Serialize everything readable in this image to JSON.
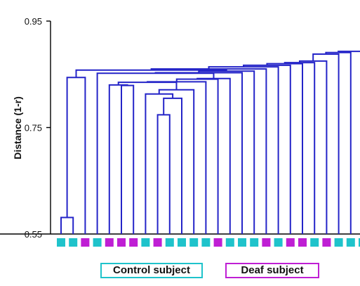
{
  "chart_data": {
    "type": "dendrogram",
    "title": "",
    "ylabel": "Distance (1-r)",
    "xlabel": "",
    "ylim": [
      0.55,
      0.95
    ],
    "yticks": [
      0.55,
      0.75,
      0.95
    ],
    "ytick_labels": [
      "0.55",
      "0.75",
      "0.95"
    ],
    "linkage_color": "#2424c8",
    "leaf_groups": [
      "control",
      "control",
      "deaf",
      "control",
      "deaf",
      "deaf",
      "deaf",
      "control",
      "deaf",
      "control",
      "control",
      "control",
      "control",
      "deaf",
      "control",
      "control",
      "control",
      "deaf",
      "control",
      "deaf",
      "deaf",
      "control",
      "deaf",
      "control",
      "control",
      "control"
    ],
    "merges": [
      {
        "left": "L0",
        "right": "L1",
        "height": 0.581
      },
      {
        "left": "L8",
        "right": "L9",
        "height": 0.774
      },
      {
        "left": "M1",
        "right": "L10",
        "height": 0.805
      },
      {
        "left": "L7",
        "right": "M2",
        "height": 0.813
      },
      {
        "left": "M3",
        "right": "L11",
        "height": 0.821
      },
      {
        "left": "L5",
        "right": "L6",
        "height": 0.829
      },
      {
        "left": "L4",
        "right": "M5",
        "height": 0.83
      },
      {
        "left": "M6",
        "right": "M4",
        "height": 0.835
      },
      {
        "left": "M7",
        "right": "L12",
        "height": 0.836
      },
      {
        "left": "M8",
        "right": "L13",
        "height": 0.841
      },
      {
        "left": "M9",
        "right": "L14",
        "height": 0.842
      },
      {
        "left": "M0",
        "right": "L2",
        "height": 0.844
      },
      {
        "left": "L3",
        "right": "M10",
        "height": 0.852
      },
      {
        "left": "M12",
        "right": "L15",
        "height": 0.853
      },
      {
        "left": "M13",
        "right": "L16",
        "height": 0.856
      },
      {
        "left": "M11",
        "right": "M14",
        "height": 0.858
      },
      {
        "left": "M15",
        "right": "L17",
        "height": 0.86
      },
      {
        "left": "M16",
        "right": "L18",
        "height": 0.864
      },
      {
        "left": "M17",
        "right": "L19",
        "height": 0.867
      },
      {
        "left": "M18",
        "right": "L20",
        "height": 0.87
      },
      {
        "left": "M19",
        "right": "L21",
        "height": 0.872
      },
      {
        "left": "M20",
        "right": "L22",
        "height": 0.875
      },
      {
        "left": "M21",
        "right": "L23",
        "height": 0.888
      },
      {
        "left": "M22",
        "right": "L24",
        "height": 0.891
      },
      {
        "left": "M23",
        "right": "L25",
        "height": 0.893
      }
    ],
    "legend": [
      {
        "label": "Control subject",
        "group": "control",
        "color": "#1fc3cb"
      },
      {
        "label": "Deaf subject",
        "group": "deaf",
        "color": "#bf1fd4"
      }
    ]
  }
}
